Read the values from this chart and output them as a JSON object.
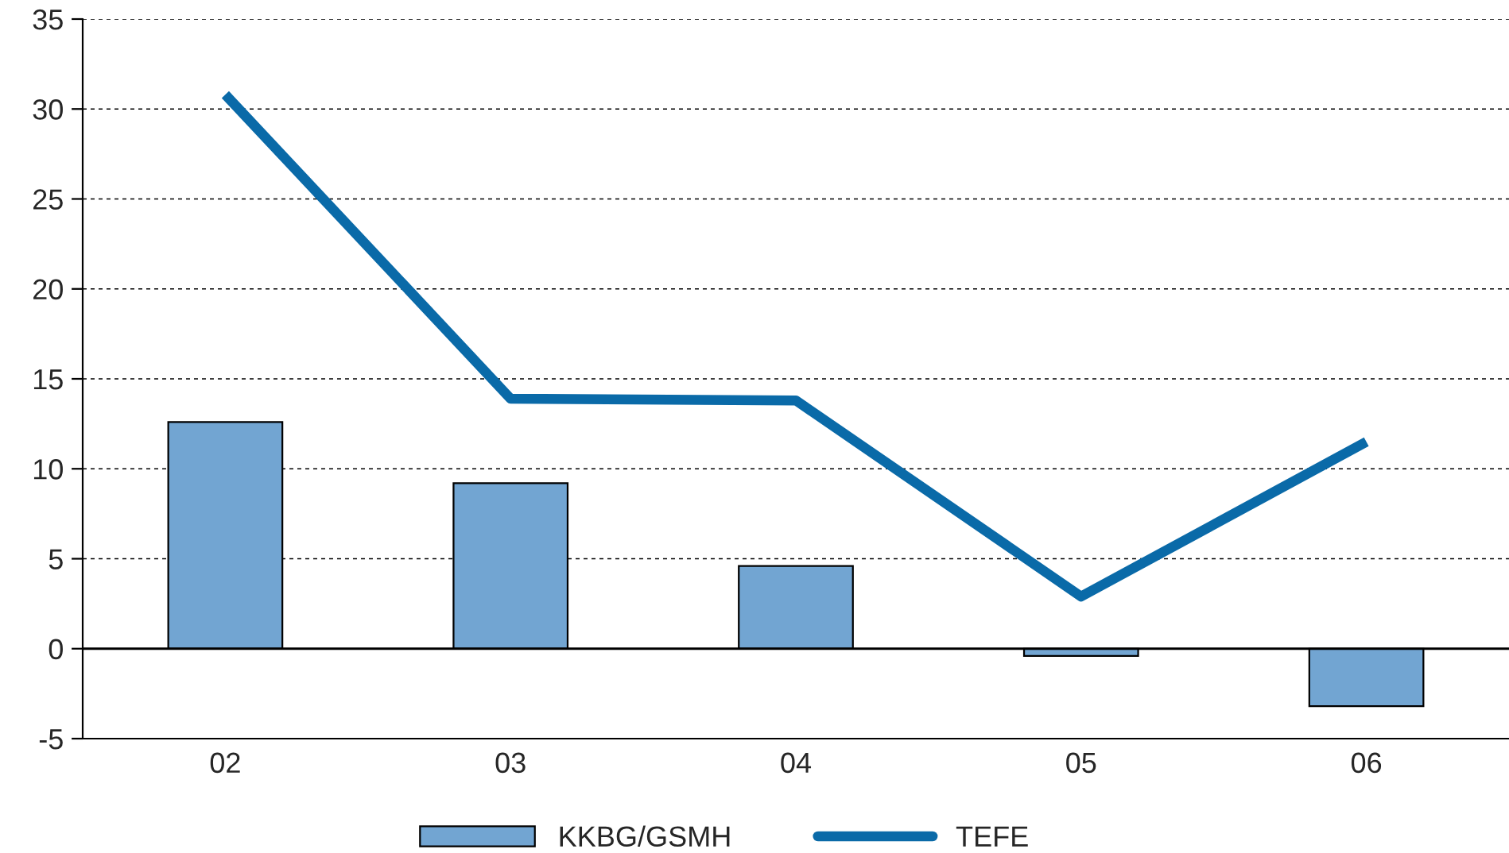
{
  "chart_data": {
    "type": "bar",
    "categories": [
      "02",
      "03",
      "04",
      "05",
      "06"
    ],
    "series": [
      {
        "name": "KKBG/GSMH",
        "color": "#72a5d2",
        "values": [
          12.6,
          9.2,
          4.6,
          -0.4,
          -3.2
        ]
      },
      {
        "name": "TEFE",
        "type": "line",
        "color": "#0a6aa8",
        "values": [
          30.8,
          13.9,
          13.8,
          2.9,
          11.5
        ]
      }
    ],
    "ylim": [
      -5,
      35
    ],
    "yticks": [
      -5,
      0,
      5,
      10,
      15,
      20,
      25,
      30,
      35
    ],
    "grid": "y",
    "legend": "bottom",
    "marker": "none",
    "line_style": "solid",
    "ref_lines": [
      {
        "axis": "y",
        "value": 0,
        "color": "#000000",
        "line_style": "solid"
      }
    ]
  }
}
